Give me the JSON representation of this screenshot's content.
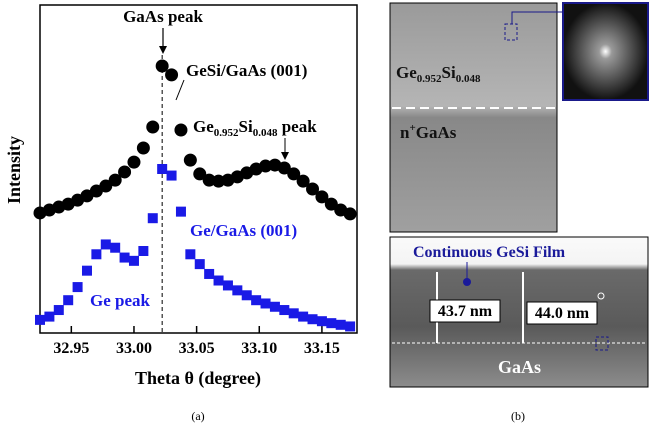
{
  "chart_data": {
    "type": "scatter",
    "xlabel": "Theta θ (degree)",
    "ylabel": "Intensity",
    "x": [
      32.925,
      32.9325,
      32.94,
      32.9475,
      32.955,
      32.9625,
      32.97,
      32.9775,
      32.985,
      32.9925,
      33,
      33.0075,
      33.015,
      33.0225,
      33.03,
      33.0375,
      33.045,
      33.0525,
      33.06,
      33.0675,
      33.075,
      33.0825,
      33.09,
      33.0975,
      33.105,
      33.1125,
      33.12,
      33.1275,
      33.135,
      33.1425,
      33.15,
      33.1575,
      33.165,
      33.1725
    ],
    "series": [
      {
        "name": "GeSi/GaAs (001)",
        "color": "#000000",
        "marker": "circle",
        "values": [
          3.66,
          3.75,
          3.84,
          3.93,
          4.05,
          4.18,
          4.33,
          4.48,
          4.66,
          4.91,
          5.21,
          5.64,
          6.28,
          8.14,
          7.87,
          6.19,
          5.27,
          4.85,
          4.66,
          4.63,
          4.66,
          4.76,
          4.88,
          5.0,
          5.09,
          5.12,
          5.03,
          4.85,
          4.63,
          4.39,
          4.15,
          3.93,
          3.75,
          3.63
        ]
      },
      {
        "name": "Ge/GaAs (001)",
        "color": "#1a1ae6",
        "marker": "square",
        "values": [
          0.4,
          0.5,
          0.7,
          1.0,
          1.4,
          1.9,
          2.4,
          2.7,
          2.6,
          2.3,
          2.2,
          2.5,
          3.5,
          5.0,
          4.8,
          3.7,
          2.4,
          2.1,
          1.8,
          1.6,
          1.45,
          1.3,
          1.15,
          1.0,
          0.9,
          0.8,
          0.7,
          0.6,
          0.5,
          0.42,
          0.36,
          0.3,
          0.25,
          0.2
        ]
      }
    ],
    "xlim": [
      32.925,
      33.178
    ],
    "xticks": [
      32.95,
      {
        "value": 33,
        "label": "33.00"
      },
      33.05,
      {
        "value": 33.1,
        "label": "33.10"
      },
      33.15
    ],
    "ylim": [
      0,
      10
    ],
    "annotations": {
      "gaas_peak": "GaAs peak",
      "gesi_peak": [
        {
          "t": "Ge"
        },
        {
          "sub": "0.952"
        },
        {
          "t": "Si"
        },
        {
          "sub": "0.048"
        },
        {
          "t": " peak"
        }
      ],
      "ge_peak": "Ge peak"
    }
  },
  "panel_b": {
    "layer_label": [
      {
        "t": "Ge"
      },
      {
        "sub": "0.952"
      },
      {
        "t": "Si"
      },
      {
        "sub": "0.048"
      }
    ],
    "substrate_label": [
      {
        "t": "n"
      },
      {
        "sup": "+"
      },
      {
        "t": "GaAs"
      }
    ],
    "film_label": "Continuous GeSi Film",
    "thickness_left": "43.7 nm",
    "thickness_right": "44.0 nm",
    "bottom_substrate": "GaAs"
  },
  "captions": [
    "(a)",
    "(b)"
  ]
}
